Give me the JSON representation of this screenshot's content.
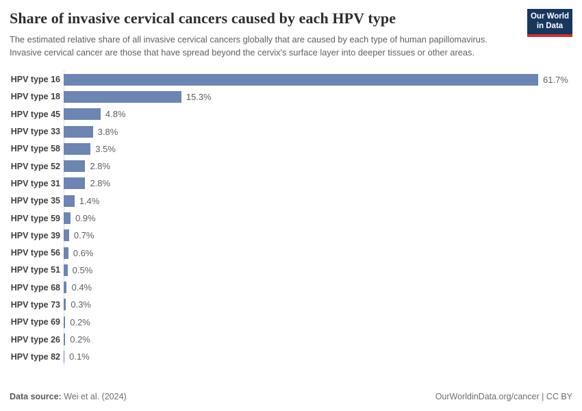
{
  "header": {
    "title": "Share of invasive cervical cancers caused by each HPV type",
    "subtitle": "The estimated relative share of all invasive cervical cancers globally that are caused by each type of human papillomavirus. Invasive cervical cancer are those that have spread beyond the cervix's surface layer into deeper tissues or other areas.",
    "logo": {
      "line1": "Our World",
      "line2": "in Data"
    }
  },
  "colors": {
    "bar": "#6c85b2",
    "logo_bg": "#18375f",
    "logo_stripe": "#cf322d",
    "axis": "#dcdcdc"
  },
  "chart_data": {
    "type": "bar",
    "orientation": "horizontal",
    "title": "Share of invasive cervical cancers caused by each HPV type",
    "categories": [
      "HPV type 16",
      "HPV type 18",
      "HPV type 45",
      "HPV type 33",
      "HPV type 58",
      "HPV type 52",
      "HPV type 31",
      "HPV type 35",
      "HPV type 59",
      "HPV type 39",
      "HPV type 56",
      "HPV type 51",
      "HPV type 68",
      "HPV type 73",
      "HPV type 69",
      "HPV type 26",
      "HPV type 82"
    ],
    "values": [
      61.7,
      15.3,
      4.8,
      3.8,
      3.5,
      2.8,
      2.8,
      1.4,
      0.9,
      0.7,
      0.6,
      0.5,
      0.4,
      0.3,
      0.2,
      0.2,
      0.1
    ],
    "value_labels": [
      "61.7%",
      "15.3%",
      "4.8%",
      "3.8%",
      "3.5%",
      "2.8%",
      "2.8%",
      "1.4%",
      "0.9%",
      "0.7%",
      "0.6%",
      "0.5%",
      "0.4%",
      "0.3%",
      "0.2%",
      "0.2%",
      "0.1%"
    ],
    "xlabel": "",
    "ylabel": "",
    "xlim": [
      0,
      61.7
    ],
    "grid": false,
    "legend": "none",
    "unit": "%"
  },
  "footer": {
    "source_label": "Data source:",
    "source_value": "Wei et al. (2024)",
    "license": "OurWorldinData.org/cancer | CC BY"
  }
}
